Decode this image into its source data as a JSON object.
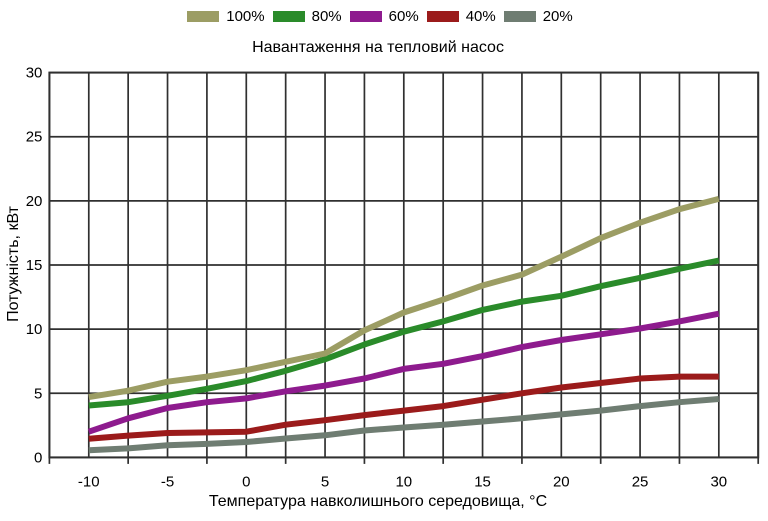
{
  "chart_data": {
    "type": "line",
    "title": "Навантаження на тепловий насос",
    "xlabel": "Температура навколишнього середовища, °C",
    "ylabel": "Потужність, кВт",
    "x": [
      -10,
      -7.5,
      -5,
      -2.5,
      0,
      2.5,
      5,
      7.5,
      10,
      12.5,
      15,
      17.5,
      20,
      22.5,
      25,
      27.5,
      30
    ],
    "series": [
      {
        "name": "100%",
        "color": "#9C9D64",
        "values": [
          4.7,
          5.2,
          5.9,
          6.3,
          6.8,
          7.45,
          8.1,
          9.9,
          11.3,
          12.3,
          13.4,
          14.25,
          15.65,
          17.1,
          18.3,
          19.35,
          20.15
        ]
      },
      {
        "name": "80%",
        "color": "#2A8B2A",
        "values": [
          4.05,
          4.3,
          4.8,
          5.35,
          5.95,
          6.75,
          7.65,
          8.8,
          9.8,
          10.6,
          11.5,
          12.15,
          12.6,
          13.35,
          14.0,
          14.7,
          15.35
        ]
      },
      {
        "name": "60%",
        "color": "#8E1B8E",
        "values": [
          2.0,
          3.05,
          3.85,
          4.3,
          4.6,
          5.15,
          5.6,
          6.15,
          6.9,
          7.3,
          7.9,
          8.6,
          9.15,
          9.6,
          10.05,
          10.6,
          11.2
        ]
      },
      {
        "name": "40%",
        "color": "#9B1B1B",
        "values": [
          1.45,
          1.7,
          1.9,
          1.95,
          2.0,
          2.55,
          2.9,
          3.3,
          3.65,
          4.0,
          4.5,
          5.0,
          5.45,
          5.8,
          6.15,
          6.3,
          6.3
        ]
      },
      {
        "name": "20%",
        "color": "#6F7D72",
        "values": [
          0.55,
          0.7,
          0.95,
          1.05,
          1.2,
          1.47,
          1.72,
          2.1,
          2.33,
          2.55,
          2.8,
          3.05,
          3.35,
          3.65,
          4.0,
          4.3,
          4.55
        ]
      }
    ],
    "x_ticks": [
      -10,
      -5,
      0,
      5,
      10,
      15,
      20,
      25,
      30
    ],
    "y_ticks": [
      0,
      5,
      10,
      15,
      20,
      25,
      30
    ],
    "xlim": [
      -12.5,
      32.5
    ],
    "ylim": [
      0,
      30
    ],
    "x_minor_step": 2.5,
    "grid": true,
    "legend_position": "top",
    "line_width": 6,
    "axis_color": "#303030",
    "background": "#ffffff"
  }
}
